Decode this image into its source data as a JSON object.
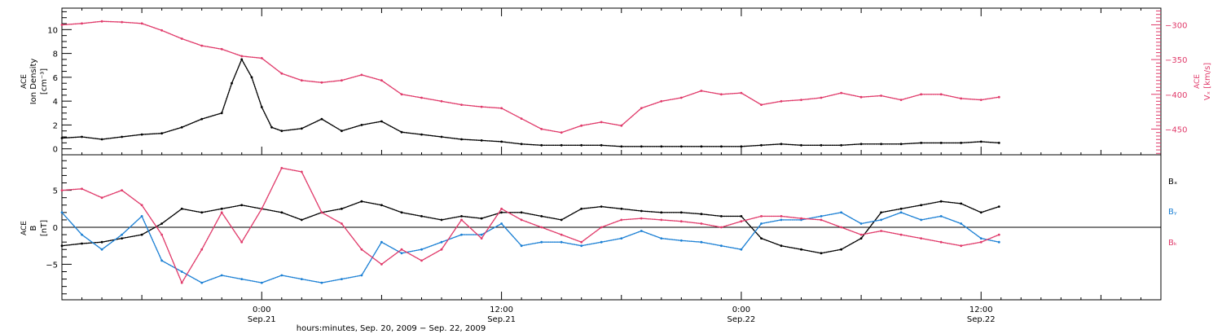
{
  "colors": {
    "axis": "#000000",
    "density": "#000000",
    "vx": "#e03a6a",
    "bx": "#000000",
    "by": "#1a7fd4",
    "bz": "#e03a6a"
  },
  "xaxis": {
    "title": "hours:minutes, Sep. 20, 2009 − Sep. 22, 2009",
    "range_hours": [
      -10,
      45
    ],
    "ticks": [
      {
        "hour": 0,
        "time": "0:00",
        "date": "Sep.21"
      },
      {
        "hour": 12,
        "time": "12:00",
        "date": "Sep.21"
      },
      {
        "hour": 24,
        "time": "0:00",
        "date": "Sep.22"
      },
      {
        "hour": 36,
        "time": "12:00",
        "date": "Sep.22"
      }
    ]
  },
  "chart_data": [
    {
      "type": "scatter",
      "panel": "top",
      "ylabel_left": [
        "ACE",
        "Ion Density",
        "[cm⁻³]"
      ],
      "ylabel_right": [
        "ACE",
        "Vₓ [km/s]"
      ],
      "left_axis": {
        "ylim": [
          -0.5,
          11.8
        ],
        "ticks": [
          0,
          2,
          4,
          6,
          8,
          10
        ],
        "tick_labels": [
          "0",
          "2",
          "4",
          "6",
          "8",
          "10"
        ]
      },
      "right_axis": {
        "ylim": [
          -487,
          -276
        ],
        "ticks": [
          -300,
          -350,
          -400,
          -450
        ],
        "tick_labels": [
          "−300",
          "−350",
          "−400",
          "−450"
        ]
      },
      "series": [
        {
          "key": "density",
          "axis": "left",
          "x": [
            -10,
            -9,
            -8,
            -7,
            -6,
            -5,
            -4,
            -3,
            -2,
            -1.5,
            -1,
            -0.5,
            0,
            0.5,
            1,
            2,
            3,
            4,
            5,
            6,
            7,
            8,
            9,
            10,
            11,
            12,
            13,
            14,
            15,
            16,
            17,
            18,
            19,
            20,
            21,
            22,
            23,
            24,
            25,
            26,
            27,
            28,
            29,
            30,
            31,
            32,
            33,
            34,
            35,
            36,
            36.9
          ],
          "y": [
            0.9,
            1.0,
            0.8,
            1.0,
            1.2,
            1.3,
            1.8,
            2.5,
            3.0,
            5.5,
            7.5,
            6.0,
            3.5,
            1.8,
            1.5,
            1.7,
            2.5,
            1.5,
            2.0,
            2.3,
            1.4,
            1.2,
            1.0,
            0.8,
            0.7,
            0.6,
            0.4,
            0.3,
            0.3,
            0.3,
            0.3,
            0.2,
            0.2,
            0.2,
            0.2,
            0.2,
            0.2,
            0.2,
            0.3,
            0.4,
            0.3,
            0.3,
            0.3,
            0.4,
            0.4,
            0.4,
            0.5,
            0.5,
            0.5,
            0.6,
            0.5
          ]
        },
        {
          "key": "vx",
          "axis": "right",
          "x": [
            -10,
            -9,
            -8,
            -7,
            -6,
            -5,
            -4,
            -3,
            -2,
            -1,
            0,
            1,
            2,
            3,
            4,
            5,
            6,
            7,
            8,
            9,
            10,
            11,
            12,
            13,
            14,
            15,
            16,
            17,
            18,
            19,
            20,
            21,
            22,
            23,
            24,
            25,
            26,
            27,
            28,
            29,
            30,
            31,
            32,
            33,
            34,
            35,
            36,
            36.9
          ],
          "y": [
            -300,
            -298,
            -295,
            -296,
            -298,
            -308,
            -320,
            -330,
            -335,
            -345,
            -348,
            -370,
            -380,
            -383,
            -380,
            -372,
            -380,
            -400,
            -405,
            -410,
            -415,
            -418,
            -420,
            -435,
            -450,
            -455,
            -445,
            -440,
            -445,
            -420,
            -410,
            -405,
            -395,
            -400,
            -398,
            -415,
            -410,
            -408,
            -405,
            -398,
            -404,
            -402,
            -408,
            -400,
            -400,
            -406,
            -408,
            -404
          ]
        }
      ]
    },
    {
      "type": "scatter",
      "panel": "bottom",
      "ylabel_left": [
        "ACE",
        "B",
        "[nT]"
      ],
      "ylim": [
        -9.8,
        9.8
      ],
      "ticks": [
        -5,
        0,
        5
      ],
      "tick_labels": [
        "−5",
        "0",
        "5"
      ],
      "zero_line": true,
      "legend": [
        "Bₓ",
        "Bᵧ",
        "Bₖ"
      ],
      "series": [
        {
          "key": "bx",
          "x": [
            -10,
            -9,
            -8,
            -7,
            -6,
            -5,
            -4,
            -3,
            -2,
            -1,
            0,
            1,
            2,
            3,
            4,
            5,
            6,
            7,
            8,
            9,
            10,
            11,
            12,
            13,
            14,
            15,
            16,
            17,
            18,
            19,
            20,
            21,
            22,
            23,
            24,
            25,
            26,
            27,
            28,
            29,
            30,
            31,
            32,
            33,
            34,
            35,
            36,
            36.9
          ],
          "y": [
            -2.5,
            -2.2,
            -2.0,
            -1.5,
            -1.0,
            0.5,
            2.5,
            2.0,
            2.5,
            3.0,
            2.5,
            2.0,
            1.0,
            2.0,
            2.5,
            3.5,
            3.0,
            2.0,
            1.5,
            1.0,
            1.5,
            1.2,
            2.0,
            2.0,
            1.5,
            1.0,
            2.5,
            2.8,
            2.5,
            2.2,
            2.0,
            2.0,
            1.8,
            1.5,
            1.5,
            -1.5,
            -2.5,
            -3.0,
            -3.5,
            -3.0,
            -1.5,
            2.0,
            2.5,
            3.0,
            3.5,
            3.2,
            2.0,
            2.8
          ]
        },
        {
          "key": "by",
          "x": [
            -10,
            -9,
            -8,
            -7,
            -6,
            -5,
            -4,
            -3,
            -2,
            -1,
            0,
            1,
            2,
            3,
            4,
            5,
            6,
            7,
            8,
            9,
            10,
            11,
            12,
            13,
            14,
            15,
            16,
            17,
            18,
            19,
            20,
            21,
            22,
            23,
            24,
            25,
            26,
            27,
            28,
            29,
            30,
            31,
            32,
            33,
            34,
            35,
            36,
            36.9
          ],
          "y": [
            2.0,
            -1.0,
            -3.0,
            -1.0,
            1.5,
            -4.5,
            -6.0,
            -7.5,
            -6.5,
            -7.0,
            -7.5,
            -6.5,
            -7.0,
            -7.5,
            -7.0,
            -6.5,
            -2.0,
            -3.5,
            -3.0,
            -2.0,
            -1.0,
            -1.0,
            0.5,
            -2.5,
            -2.0,
            -2.0,
            -2.5,
            -2.0,
            -1.5,
            -0.5,
            -1.5,
            -1.8,
            -2.0,
            -2.5,
            -3.0,
            0.5,
            1.0,
            1.0,
            1.5,
            2.0,
            0.5,
            1.0,
            2.0,
            1.0,
            1.5,
            0.5,
            -1.5,
            -2.0
          ]
        },
        {
          "key": "bz",
          "x": [
            -10,
            -9,
            -8,
            -7,
            -6,
            -5,
            -4,
            -3,
            -2,
            -1,
            0,
            1,
            2,
            3,
            4,
            5,
            6,
            7,
            8,
            9,
            10,
            11,
            12,
            13,
            14,
            15,
            16,
            17,
            18,
            19,
            20,
            21,
            22,
            23,
            24,
            25,
            26,
            27,
            28,
            29,
            30,
            31,
            32,
            33,
            34,
            35,
            36,
            36.9
          ],
          "y": [
            5.0,
            5.2,
            4.0,
            5.0,
            3.0,
            -1.0,
            -7.5,
            -3.0,
            2.0,
            -2.0,
            2.5,
            8.0,
            7.5,
            2.0,
            0.5,
            -3.0,
            -5.0,
            -3.0,
            -4.5,
            -3.0,
            1.0,
            -1.5,
            2.5,
            1.0,
            0.0,
            -1.0,
            -2.0,
            0.0,
            1.0,
            1.2,
            1.0,
            0.8,
            0.5,
            0.0,
            0.8,
            1.5,
            1.5,
            1.2,
            1.0,
            0.0,
            -1.0,
            -0.5,
            -1.0,
            -1.5,
            -2.0,
            -2.5,
            -2.0,
            -1.0
          ]
        }
      ]
    }
  ]
}
